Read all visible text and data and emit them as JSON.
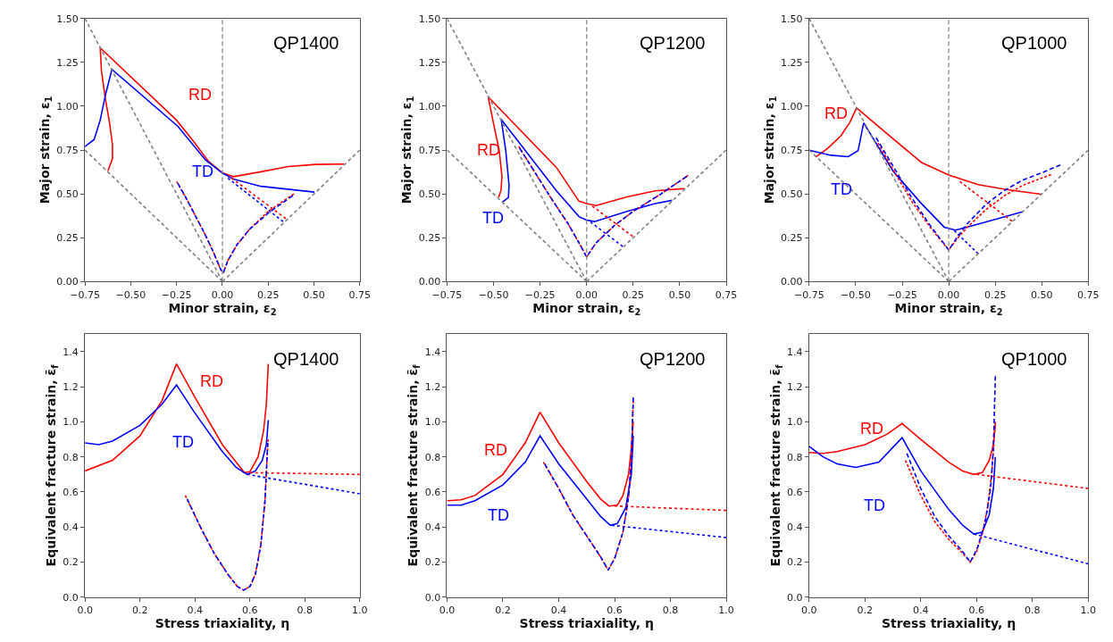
{
  "chart_data": [
    {
      "type": "line",
      "title": "QP1400",
      "xlabel": "Minor strain, ε$_{2}$",
      "ylabel": "Major strain, ε$_{1}$",
      "xlim": [
        -0.75,
        0.75
      ],
      "ylim": [
        0,
        1.5
      ],
      "xticks": [
        {
          "value": -0.75,
          "label": "−0.75"
        },
        {
          "value": -0.5,
          "label": "−0.50"
        },
        {
          "value": -0.25,
          "label": "−0.25"
        },
        {
          "value": 0,
          "label": "0.00"
        },
        {
          "value": 0.25,
          "label": "0.25"
        },
        {
          "value": 0.5,
          "label": "0.50"
        },
        {
          "value": 0.75,
          "label": "0.75"
        }
      ],
      "yticks": [
        {
          "value": 0,
          "label": "0.00"
        },
        {
          "value": 0.25,
          "label": "0.25"
        },
        {
          "value": 0.5,
          "label": "0.50"
        },
        {
          "value": 0.75,
          "label": "0.75"
        },
        {
          "value": 1.0,
          "label": "1.00"
        },
        {
          "value": 1.25,
          "label": "1.25"
        },
        {
          "value": 1.5,
          "label": "1.50"
        }
      ],
      "ref_lines": [
        {
          "axis": "x",
          "value": 0,
          "color": "#808080",
          "line_style": "dashed"
        }
      ],
      "annotations": [
        "RD",
        "TD"
      ],
      "series": [
        {
          "color": "#ff0000",
          "line_style": "solid",
          "x": [
            -0.625,
            -0.6,
            -0.6,
            -0.615,
            -0.64,
            -0.66,
            -0.667,
            -0.25,
            -0.15,
            -0.08,
            0,
            0.06,
            0.21,
            0.36,
            0.51,
            0.665
          ],
          "values": [
            0.63,
            0.7,
            0.78,
            0.9,
            1.05,
            1.2,
            1.333,
            0.92,
            0.79,
            0.69,
            0.62,
            0.598,
            0.626,
            0.656,
            0.668,
            0.67
          ]
        },
        {
          "color": "#0000ff",
          "line_style": "solid",
          "x": [
            -0.75,
            -0.7,
            -0.667,
            -0.637,
            -0.603,
            -0.243,
            -0.092,
            0,
            0.06,
            0.21,
            0.502
          ],
          "values": [
            0.77,
            0.81,
            0.92,
            1.07,
            1.21,
            0.885,
            0.693,
            0.618,
            0.585,
            0.543,
            0.51
          ]
        },
        {
          "color": "#ff0000",
          "line_style": "dotted",
          "x": [
            0.05,
            0.346
          ],
          "values": [
            0.59,
            0.359
          ]
        },
        {
          "color": "#0000ff",
          "line_style": "dotted",
          "x": [
            0.03,
            0.331
          ],
          "values": [
            0.59,
            0.342
          ]
        },
        {
          "color": "#ff0000",
          "line_style": "dashed",
          "x": [
            -0.25,
            -0.2,
            -0.15,
            -0.1,
            -0.05,
            -0.01,
            0.005,
            0.03,
            0.08,
            0.15,
            0.25,
            0.39
          ],
          "values": [
            0.57,
            0.48,
            0.38,
            0.28,
            0.17,
            0.07,
            0.05,
            0.12,
            0.21,
            0.3,
            0.4,
            0.5
          ]
        },
        {
          "color": "#0000ff",
          "line_style": "dashed",
          "x": [
            -0.243,
            -0.2,
            -0.15,
            -0.1,
            -0.05,
            -0.01,
            0.005,
            0.03,
            0.08,
            0.15,
            0.25,
            0.384
          ],
          "values": [
            0.56,
            0.48,
            0.38,
            0.28,
            0.17,
            0.07,
            0.05,
            0.12,
            0.21,
            0.3,
            0.39,
            0.49
          ]
        },
        {
          "color": "#808080",
          "line_style": "dashed",
          "x": [
            -0.75,
            0
          ],
          "values": [
            1.5,
            0
          ]
        },
        {
          "color": "#808080",
          "line_style": "dashed",
          "x": [
            -0.75,
            0
          ],
          "values": [
            0.75,
            0
          ]
        },
        {
          "color": "#808080",
          "line_style": "dashed",
          "x": [
            0,
            0.75
          ],
          "values": [
            0,
            0.75
          ]
        }
      ]
    },
    {
      "type": "line",
      "title": "QP1200",
      "xlabel": "Minor strain, ε$_{2}$",
      "ylabel": "Major strain, ε$_{1}$",
      "xlim": [
        -0.75,
        0.75
      ],
      "ylim": [
        0,
        1.5
      ],
      "xticks": [
        {
          "value": -0.75,
          "label": "−0.75"
        },
        {
          "value": -0.5,
          "label": "−0.50"
        },
        {
          "value": -0.25,
          "label": "−0.25"
        },
        {
          "value": 0,
          "label": "0.00"
        },
        {
          "value": 0.25,
          "label": "0.25"
        },
        {
          "value": 0.5,
          "label": "0.50"
        },
        {
          "value": 0.75,
          "label": "0.75"
        }
      ],
      "yticks": [
        {
          "value": 0,
          "label": "0.00"
        },
        {
          "value": 0.25,
          "label": "0.25"
        },
        {
          "value": 0.5,
          "label": "0.50"
        },
        {
          "value": 0.75,
          "label": "0.75"
        },
        {
          "value": 1.0,
          "label": "1.00"
        },
        {
          "value": 1.25,
          "label": "1.25"
        },
        {
          "value": 1.5,
          "label": "1.50"
        }
      ],
      "ref_lines": [
        {
          "axis": "x",
          "value": 0,
          "color": "#808080",
          "line_style": "dashed"
        }
      ],
      "annotations": [
        "RD",
        "TD"
      ],
      "series": [
        {
          "color": "#ff0000",
          "line_style": "solid",
          "x": [
            -0.473,
            -0.46,
            -0.455,
            -0.47,
            -0.5,
            -0.529,
            -0.162,
            -0.041,
            0,
            0.05,
            0.217,
            0.368,
            0.527
          ],
          "values": [
            0.48,
            0.52,
            0.6,
            0.75,
            0.9,
            1.053,
            0.65,
            0.458,
            0.445,
            0.433,
            0.483,
            0.517,
            0.53
          ]
        },
        {
          "color": "#0000ff",
          "line_style": "solid",
          "x": [
            -0.453,
            -0.42,
            -0.417,
            -0.435,
            -0.459,
            -0.162,
            -0.041,
            0,
            0.042,
            0.217,
            0.368,
            0.459
          ],
          "values": [
            0.453,
            0.48,
            0.55,
            0.75,
            0.925,
            0.517,
            0.37,
            0.35,
            0.342,
            0.4,
            0.445,
            0.463
          ]
        },
        {
          "color": "#ff0000",
          "line_style": "dotted",
          "x": [
            0.03,
            0.247
          ],
          "values": [
            0.43,
            0.258
          ]
        },
        {
          "color": "#0000ff",
          "line_style": "dotted",
          "x": [
            0.02,
            0.194
          ],
          "values": [
            0.34,
            0.2
          ]
        },
        {
          "color": "#ff0000",
          "line_style": "dashed",
          "x": [
            -0.365,
            -0.3,
            -0.2,
            -0.1,
            -0.03,
            0,
            0.05,
            0.15,
            0.25,
            0.4,
            0.545
          ],
          "values": [
            0.77,
            0.66,
            0.49,
            0.33,
            0.2,
            0.14,
            0.22,
            0.32,
            0.4,
            0.5,
            0.605
          ]
        },
        {
          "color": "#0000ff",
          "line_style": "dashed",
          "x": [
            -0.36,
            -0.3,
            -0.2,
            -0.1,
            -0.03,
            0,
            0.05,
            0.15,
            0.25,
            0.4,
            0.538
          ],
          "values": [
            0.76,
            0.66,
            0.49,
            0.33,
            0.2,
            0.14,
            0.22,
            0.32,
            0.4,
            0.5,
            0.6
          ]
        },
        {
          "color": "#808080",
          "line_style": "dashed",
          "x": [
            -0.75,
            0
          ],
          "values": [
            1.5,
            0
          ]
        },
        {
          "color": "#808080",
          "line_style": "dashed",
          "x": [
            -0.75,
            0
          ],
          "values": [
            0.75,
            0
          ]
        },
        {
          "color": "#808080",
          "line_style": "dashed",
          "x": [
            0,
            0.75
          ],
          "values": [
            0,
            0.75
          ]
        }
      ]
    },
    {
      "type": "line",
      "title": "QP1000",
      "xlabel": "Minor strain, ε$_{2}$",
      "ylabel": "Major strain, ε$_{1}$",
      "xlim": [
        -0.75,
        0.75
      ],
      "ylim": [
        0,
        1.5
      ],
      "xticks": [
        {
          "value": -0.75,
          "label": "−0.75"
        },
        {
          "value": -0.5,
          "label": "−0.50"
        },
        {
          "value": -0.25,
          "label": "−0.25"
        },
        {
          "value": 0,
          "label": "0.00"
        },
        {
          "value": 0.25,
          "label": "0.25"
        },
        {
          "value": 0.5,
          "label": "0.50"
        },
        {
          "value": 0.75,
          "label": "0.75"
        }
      ],
      "yticks": [
        {
          "value": 0,
          "label": "0.00"
        },
        {
          "value": 0.25,
          "label": "0.25"
        },
        {
          "value": 0.5,
          "label": "0.50"
        },
        {
          "value": 0.75,
          "label": "0.75"
        },
        {
          "value": 1.0,
          "label": "1.00"
        },
        {
          "value": 1.25,
          "label": "1.25"
        },
        {
          "value": 1.5,
          "label": "1.50"
        }
      ],
      "ref_lines": [
        {
          "axis": "x",
          "value": 0,
          "color": "#808080",
          "line_style": "dashed"
        }
      ],
      "annotations": [
        "RD",
        "TD"
      ],
      "series": [
        {
          "color": "#ff0000",
          "line_style": "solid",
          "x": [
            -0.715,
            -0.65,
            -0.58,
            -0.53,
            -0.495,
            -0.298,
            -0.146,
            0,
            0.158,
            0.31,
            0.495
          ],
          "values": [
            0.71,
            0.76,
            0.83,
            0.91,
            0.99,
            0.813,
            0.679,
            0.607,
            0.553,
            0.525,
            0.498
          ]
        },
        {
          "color": "#0000ff",
          "line_style": "solid",
          "x": [
            -0.75,
            -0.632,
            -0.54,
            -0.487,
            -0.457,
            -0.298,
            -0.146,
            -0.024,
            0.036,
            0.158,
            0.4
          ],
          "values": [
            0.749,
            0.72,
            0.712,
            0.746,
            0.905,
            0.628,
            0.444,
            0.31,
            0.293,
            0.327,
            0.399
          ]
        },
        {
          "color": "#ff0000",
          "line_style": "dotted",
          "x": [
            0.06,
            0.34
          ],
          "values": [
            0.57,
            0.344
          ]
        },
        {
          "color": "#0000ff",
          "line_style": "dotted",
          "x": [
            0.03,
            0.158
          ],
          "values": [
            0.29,
            0.159
          ]
        },
        {
          "color": "#ff0000",
          "line_style": "dashed",
          "x": [
            -0.38,
            -0.3,
            -0.2,
            -0.1,
            0,
            0.05,
            0.1,
            0.2,
            0.3,
            0.4,
            0.55
          ],
          "values": [
            0.79,
            0.64,
            0.46,
            0.31,
            0.18,
            0.25,
            0.31,
            0.41,
            0.49,
            0.55,
            0.61
          ]
        },
        {
          "color": "#0000ff",
          "line_style": "dashed",
          "x": [
            -0.39,
            -0.3,
            -0.2,
            -0.1,
            0,
            0.05,
            0.1,
            0.2,
            0.3,
            0.4,
            0.5,
            0.6
          ],
          "values": [
            0.82,
            0.66,
            0.48,
            0.32,
            0.18,
            0.26,
            0.33,
            0.44,
            0.52,
            0.58,
            0.62,
            0.665
          ]
        },
        {
          "color": "#808080",
          "line_style": "dashed",
          "x": [
            -0.75,
            0
          ],
          "values": [
            1.5,
            0
          ]
        },
        {
          "color": "#808080",
          "line_style": "dashed",
          "x": [
            -0.75,
            0
          ],
          "values": [
            0.75,
            0
          ]
        },
        {
          "color": "#808080",
          "line_style": "dashed",
          "x": [
            0,
            0.75
          ],
          "values": [
            0,
            0.75
          ]
        }
      ]
    },
    {
      "type": "line",
      "title": "QP1400",
      "xlabel": "Stress triaxiality, η",
      "ylabel": "Equivalent fracture strain, ε̄$_{f}$",
      "xlim": [
        0,
        1
      ],
      "ylim": [
        0,
        1.5
      ],
      "xticks": [
        {
          "value": 0,
          "label": "0.0"
        },
        0.2,
        0.4,
        0.6,
        0.8,
        {
          "value": 1,
          "label": "1.0"
        }
      ],
      "yticks": [
        {
          "value": 0,
          "label": "0.0"
        },
        0.2,
        0.4,
        0.6,
        0.8,
        {
          "value": 1,
          "label": "1.0"
        },
        1.2,
        1.4
      ],
      "annotations": [
        "RD",
        "TD"
      ],
      "series": [
        {
          "color": "#ff0000",
          "line_style": "solid",
          "x": [
            0,
            0.1,
            0.2,
            0.28,
            0.333,
            0.4,
            0.5,
            0.55,
            0.58,
            0.6,
            0.63,
            0.65,
            0.66,
            0.667
          ],
          "values": [
            0.72,
            0.78,
            0.92,
            1.12,
            1.33,
            1.14,
            0.87,
            0.77,
            0.71,
            0.715,
            0.8,
            0.95,
            1.1,
            1.33
          ]
        },
        {
          "color": "#0000ff",
          "line_style": "solid",
          "x": [
            0,
            0.05,
            0.1,
            0.2,
            0.28,
            0.333,
            0.4,
            0.5,
            0.55,
            0.59,
            0.62,
            0.645,
            0.66,
            0.667
          ],
          "values": [
            0.88,
            0.87,
            0.89,
            0.98,
            1.1,
            1.21,
            1.05,
            0.83,
            0.74,
            0.7,
            0.72,
            0.78,
            0.87,
            1.01
          ]
        },
        {
          "color": "#ff0000",
          "line_style": "dotted",
          "x": [
            0.6,
            1.0
          ],
          "values": [
            0.71,
            0.7
          ]
        },
        {
          "color": "#0000ff",
          "line_style": "dotted",
          "x": [
            0.59,
            1.0
          ],
          "values": [
            0.7,
            0.59
          ]
        },
        {
          "color": "#ff0000",
          "line_style": "dashed",
          "x": [
            0.365,
            0.42,
            0.47,
            0.52,
            0.555,
            0.577,
            0.6,
            0.62,
            0.64,
            0.655,
            0.666
          ],
          "values": [
            0.58,
            0.4,
            0.25,
            0.13,
            0.06,
            0.04,
            0.06,
            0.13,
            0.3,
            0.55,
            0.9
          ]
        },
        {
          "color": "#0000ff",
          "line_style": "dashed",
          "x": [
            0.372,
            0.42,
            0.47,
            0.52,
            0.555,
            0.577,
            0.6,
            0.62,
            0.64,
            0.655,
            0.665
          ],
          "values": [
            0.56,
            0.4,
            0.25,
            0.13,
            0.06,
            0.04,
            0.06,
            0.13,
            0.3,
            0.55,
            0.88
          ]
        }
      ]
    },
    {
      "type": "line",
      "title": "QP1200",
      "xlabel": "Stress triaxiality, η",
      "ylabel": "Equivalent fracture strain, ε̄$_{f}$",
      "xlim": [
        0,
        1
      ],
      "ylim": [
        0,
        1.5
      ],
      "xticks": [
        {
          "value": 0,
          "label": "0.0"
        },
        0.2,
        0.4,
        0.6,
        0.8,
        {
          "value": 1,
          "label": "1.0"
        }
      ],
      "yticks": [
        {
          "value": 0,
          "label": "0.0"
        },
        0.2,
        0.4,
        0.6,
        0.8,
        {
          "value": 1,
          "label": "1.0"
        },
        1.2,
        1.4
      ],
      "annotations": [
        "RD",
        "TD"
      ],
      "series": [
        {
          "color": "#ff0000",
          "line_style": "solid",
          "x": [
            0,
            0.05,
            0.1,
            0.2,
            0.28,
            0.333,
            0.4,
            0.5,
            0.55,
            0.58,
            0.61,
            0.63,
            0.65,
            0.66,
            0.667
          ],
          "values": [
            0.55,
            0.555,
            0.58,
            0.7,
            0.88,
            1.055,
            0.88,
            0.66,
            0.56,
            0.52,
            0.525,
            0.58,
            0.7,
            0.85,
            1.0
          ]
        },
        {
          "color": "#0000ff",
          "line_style": "solid",
          "x": [
            0,
            0.05,
            0.1,
            0.2,
            0.28,
            0.333,
            0.4,
            0.5,
            0.55,
            0.585,
            0.61,
            0.64,
            0.66,
            0.667
          ],
          "values": [
            0.525,
            0.525,
            0.55,
            0.64,
            0.77,
            0.92,
            0.76,
            0.56,
            0.46,
            0.41,
            0.42,
            0.51,
            0.7,
            0.92
          ]
        },
        {
          "color": "#ff0000",
          "line_style": "dotted",
          "x": [
            0.6,
            1.0
          ],
          "values": [
            0.52,
            0.495
          ]
        },
        {
          "color": "#0000ff",
          "line_style": "dotted",
          "x": [
            0.59,
            1.0
          ],
          "values": [
            0.41,
            0.34
          ]
        },
        {
          "color": "#ff0000",
          "line_style": "dashed",
          "x": [
            0.345,
            0.4,
            0.45,
            0.5,
            0.55,
            0.577,
            0.6,
            0.63,
            0.65,
            0.66,
            0.667
          ],
          "values": [
            0.77,
            0.62,
            0.47,
            0.35,
            0.23,
            0.155,
            0.22,
            0.37,
            0.57,
            0.78,
            1.12
          ]
        },
        {
          "color": "#0000ff",
          "line_style": "dashed",
          "x": [
            0.35,
            0.4,
            0.45,
            0.5,
            0.55,
            0.577,
            0.6,
            0.63,
            0.65,
            0.66,
            0.667
          ],
          "values": [
            0.76,
            0.62,
            0.47,
            0.35,
            0.23,
            0.155,
            0.22,
            0.37,
            0.57,
            0.78,
            1.14
          ]
        }
      ]
    },
    {
      "type": "line",
      "title": "QP1000",
      "xlabel": "Stress triaxiality, η",
      "ylabel": "Equivalent fracture strain, ε̄$_{f}$",
      "xlim": [
        0,
        1
      ],
      "ylim": [
        0,
        1.5
      ],
      "xticks": [
        {
          "value": 0,
          "label": "0.0"
        },
        0.2,
        0.4,
        0.6,
        0.8,
        {
          "value": 1,
          "label": "1.0"
        }
      ],
      "yticks": [
        {
          "value": 0,
          "label": "0.0"
        },
        0.2,
        0.4,
        0.6,
        0.8,
        {
          "value": 1,
          "label": "1.0"
        },
        1.2,
        1.4
      ],
      "annotations": [
        "RD",
        "TD"
      ],
      "series": [
        {
          "color": "#ff0000",
          "line_style": "solid",
          "x": [
            0,
            0.05,
            0.1,
            0.2,
            0.28,
            0.333,
            0.4,
            0.5,
            0.55,
            0.59,
            0.62,
            0.645,
            0.66,
            0.667
          ],
          "values": [
            0.825,
            0.82,
            0.83,
            0.87,
            0.93,
            0.99,
            0.9,
            0.77,
            0.72,
            0.7,
            0.71,
            0.78,
            0.87,
            0.99
          ]
        },
        {
          "color": "#0000ff",
          "line_style": "solid",
          "x": [
            0,
            0.05,
            0.1,
            0.167,
            0.25,
            0.333,
            0.4,
            0.5,
            0.55,
            0.59,
            0.62,
            0.645,
            0.66,
            0.667
          ],
          "values": [
            0.86,
            0.8,
            0.76,
            0.74,
            0.77,
            0.91,
            0.72,
            0.5,
            0.41,
            0.36,
            0.37,
            0.47,
            0.62,
            0.8
          ]
        },
        {
          "color": "#ff0000",
          "line_style": "dotted",
          "x": [
            0.6,
            1.0
          ],
          "values": [
            0.7,
            0.62
          ]
        },
        {
          "color": "#0000ff",
          "line_style": "dotted",
          "x": [
            0.59,
            1.0
          ],
          "values": [
            0.36,
            0.19
          ]
        },
        {
          "color": "#ff0000",
          "line_style": "dashed",
          "x": [
            0.345,
            0.4,
            0.45,
            0.5,
            0.55,
            0.577,
            0.6,
            0.62,
            0.64,
            0.655,
            0.667
          ],
          "values": [
            0.78,
            0.58,
            0.43,
            0.33,
            0.25,
            0.2,
            0.26,
            0.36,
            0.52,
            0.72,
            1.0
          ]
        },
        {
          "color": "#0000ff",
          "line_style": "dashed",
          "x": [
            0.35,
            0.4,
            0.45,
            0.5,
            0.55,
            0.577,
            0.6,
            0.63,
            0.65,
            0.66,
            0.667
          ],
          "values": [
            0.82,
            0.62,
            0.46,
            0.35,
            0.26,
            0.2,
            0.27,
            0.42,
            0.62,
            0.85,
            1.26
          ]
        }
      ]
    }
  ]
}
